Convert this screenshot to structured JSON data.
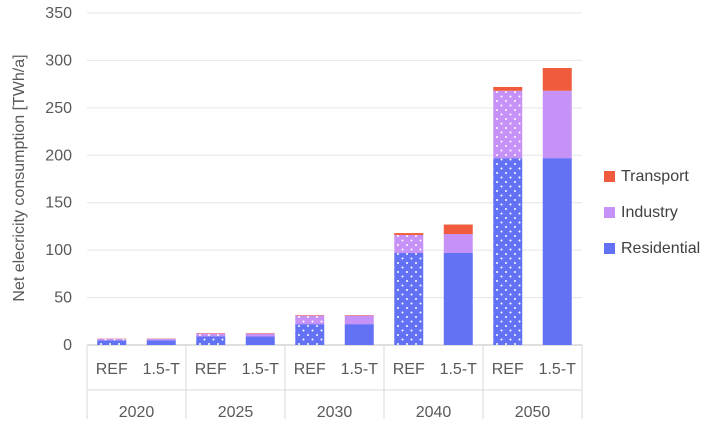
{
  "chart_data": {
    "type": "bar",
    "stacked": true,
    "ylabel": "Net elecricity consumption  [TWh/a]",
    "ylim": [
      0,
      350
    ],
    "yticks": [
      0,
      50,
      100,
      150,
      200,
      250,
      300,
      350
    ],
    "grid": true,
    "legend_position": "right",
    "groups": [
      {
        "year": "2020",
        "categories": [
          "REF",
          "1.5-T"
        ]
      },
      {
        "year": "2025",
        "categories": [
          "REF",
          "1.5-T"
        ]
      },
      {
        "year": "2030",
        "categories": [
          "REF",
          "1.5-T"
        ]
      },
      {
        "year": "2040",
        "categories": [
          "REF",
          "1.5-T"
        ]
      },
      {
        "year": "2050",
        "categories": [
          "REF",
          "1.5-T"
        ]
      }
    ],
    "series": [
      {
        "name": "Residential",
        "color": "#6371f4",
        "values": [
          5,
          5,
          9,
          9,
          22,
          22,
          97,
          97,
          197,
          197
        ]
      },
      {
        "name": "Industry",
        "color": "#c792f7",
        "values": [
          1.5,
          1.5,
          3,
          3,
          9,
          9,
          19,
          20,
          71,
          71
        ]
      },
      {
        "name": "Transport",
        "color": "#ef5b3c",
        "values": [
          0.3,
          0.3,
          0.5,
          0.5,
          0.5,
          0.5,
          2,
          10,
          4,
          24
        ]
      }
    ],
    "pattern": {
      "dotted_categories": "REF",
      "dotted_series": [
        "Residential",
        "Industry"
      ]
    }
  },
  "legend": {
    "transport": "Transport",
    "industry": "Industry",
    "residential": "Residential"
  }
}
